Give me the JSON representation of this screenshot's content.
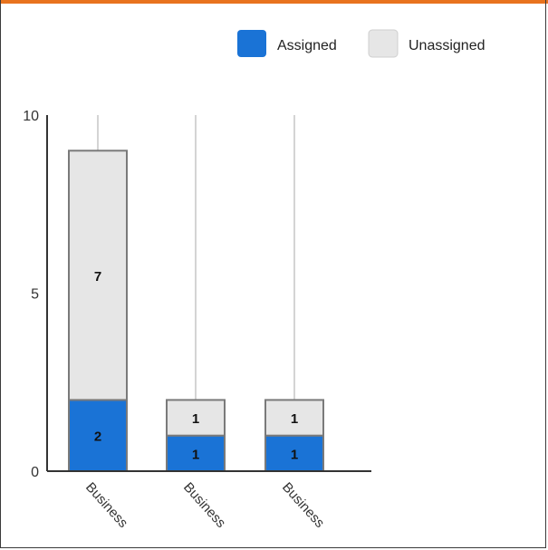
{
  "colors": {
    "accent_bar": "#e8731e",
    "assigned": "#1a73d6",
    "unassigned": "#e6e6e6",
    "bar_stroke": "#7a7a7a",
    "gridline": "#d4d4d4",
    "axis": "#333333"
  },
  "chart_data": {
    "type": "bar",
    "stacked": true,
    "categories": [
      "Business",
      "Business",
      "Business"
    ],
    "series": [
      {
        "name": "Assigned",
        "values": [
          2,
          1,
          1
        ],
        "color": "#1a73d6"
      },
      {
        "name": "Unassigned",
        "values": [
          7,
          1,
          1
        ],
        "color": "#e6e6e6"
      }
    ],
    "ylim": [
      0,
      10
    ],
    "yticks": [
      "0",
      "5",
      "10"
    ],
    "grid": true,
    "legend_position": "top-right",
    "title": "",
    "xlabel": "",
    "ylabel": ""
  }
}
